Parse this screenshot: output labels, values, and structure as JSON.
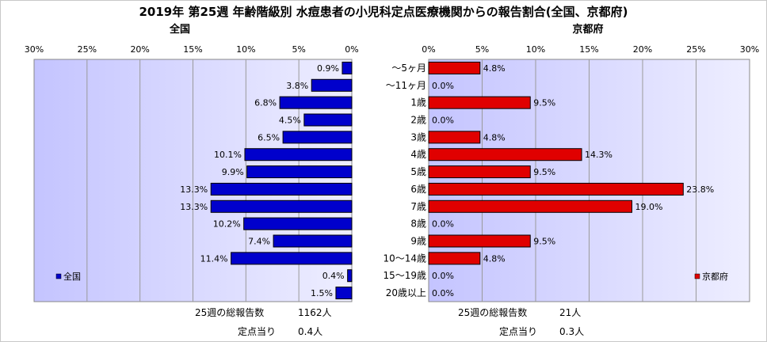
{
  "title": "2019年 第25週 年齢階級別 水痘患者の小児科定点医療機関からの報告割合(全国、京都府)",
  "colors": {
    "national": "#0000cc",
    "kyoto": "#e00000",
    "plot_bg_start": "#c4c4ff",
    "plot_bg_end": "#eeeeff"
  },
  "footer": {
    "national_total_label": "25週の総報告数",
    "national_total_value": "1162人",
    "national_per_label": "定点当り",
    "national_per_value": "0.4人",
    "kyoto_total_label": "25週の総報告数",
    "kyoto_total_value": "21人",
    "kyoto_per_label": "定点当り",
    "kyoto_per_value": "0.3人"
  },
  "chart_data": [
    {
      "type": "bar",
      "orientation": "horizontal",
      "panel_title": "全国",
      "legend": "全国",
      "legend_position": "bottom-left",
      "direction": "reversed",
      "xlim": [
        0,
        30
      ],
      "tick_labels": [
        "30%",
        "25%",
        "20%",
        "15%",
        "10%",
        "5%",
        "0%"
      ],
      "categories": [
        "～5ヶ月",
        "～11ヶ月",
        "1歳",
        "2歳",
        "3歳",
        "4歳",
        "5歳",
        "6歳",
        "7歳",
        "8歳",
        "9歳",
        "10～14歳",
        "15～19歳",
        "20歳以上"
      ],
      "values": [
        0.9,
        3.8,
        6.8,
        4.5,
        6.5,
        10.1,
        9.9,
        13.3,
        13.3,
        10.2,
        7.4,
        11.4,
        0.4,
        1.5
      ],
      "value_labels": [
        "0.9%",
        "3.8%",
        "6.8%",
        "4.5%",
        "6.5%",
        "10.1%",
        "9.9%",
        "13.3%",
        "13.3%",
        "10.2%",
        "7.4%",
        "11.4%",
        "0.4%",
        "1.5%"
      ]
    },
    {
      "type": "bar",
      "orientation": "horizontal",
      "panel_title": "京都府",
      "legend": "京都府",
      "legend_position": "bottom-right",
      "direction": "normal",
      "xlim": [
        0,
        30
      ],
      "tick_labels": [
        "0%",
        "5%",
        "10%",
        "15%",
        "20%",
        "25%",
        "30%"
      ],
      "categories": [
        "～5ヶ月",
        "～11ヶ月",
        "1歳",
        "2歳",
        "3歳",
        "4歳",
        "5歳",
        "6歳",
        "7歳",
        "8歳",
        "9歳",
        "10～14歳",
        "15～19歳",
        "20歳以上"
      ],
      "values": [
        4.8,
        0.0,
        9.5,
        0.0,
        4.8,
        14.3,
        9.5,
        23.8,
        19.0,
        0.0,
        9.5,
        4.8,
        0.0,
        0.0
      ],
      "value_labels": [
        "4.8%",
        "0.0%",
        "9.5%",
        "0.0%",
        "4.8%",
        "14.3%",
        "9.5%",
        "23.8%",
        "19.0%",
        "0.0%",
        "9.5%",
        "4.8%",
        "0.0%",
        "0.0%"
      ]
    }
  ]
}
